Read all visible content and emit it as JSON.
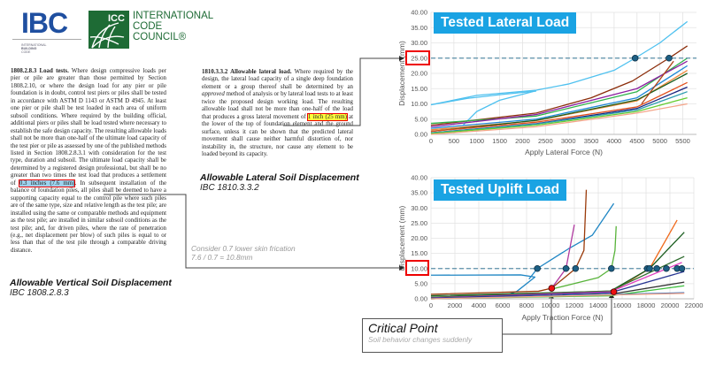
{
  "logos": {
    "ibc": {
      "mark": "IBC",
      "sub": [
        "INTERNATIONAL",
        "BUILDING",
        "CODE"
      ],
      "color": "#1f4fa0"
    },
    "icc": {
      "mark": "ICC",
      "name": [
        "INTERNATIONAL",
        "CODE",
        "COUNCIL®"
      ],
      "color": "#1e6b35"
    }
  },
  "vertical": {
    "section": "1808.2.8.3 Load tests.",
    "text_before": " Where design compressive loads per pier or pile are greater than those permitted by Section 1808.2.10, or where the design load for any pier or pile foundation is in doubt, control test piers or piles shall be tested in accordance with ASTM D 1143 or ASTM D 4945. At least one pier or pile shall be test loaded in each area of uniform subsoil conditions. Where required by the building official, additional piers or piles shall be load tested where necessary to establish the safe design capacity. The resulting allowable loads shall not be more than one-half of the ultimate load capacity of the test pier or pile as assessed by one of the published methods listed in Section 1808.2.8.3.1 with consideration for the test type, duration and subsoil. The ultimate load capacity shall be determined by a registered design professional, but shall be no greater than two times the test load that produces a settlement of ",
    "highlight": "0.3 inches (7.6 mm)",
    "text_after": ". In subsequent installation of the balance of foundation piles, all piles shall be deemed to have a supporting capacity equal to the control pile where such piles are of the same type, size and relative length as the test pile; are installed using the same or comparable methods and equipment as the test pile; are installed in similar subsoil conditions as the test pile; and, for driven piles, where the rate of penetration (e.g., net displacement per blow) of such piles is equal to or less than that of the test pile through a comparable driving distance.",
    "caption_title": "Allowable Vertical Soil Displacement",
    "caption_ref": "IBC 1808.2.8.3"
  },
  "lateral": {
    "section": "1810.3.3.2 Allowable lateral load.",
    "text_a": " Where required by the design, the lateral load capacity of a single deep foundation element or a group thereof shall be determined by an ",
    "text_em": "approved",
    "text_b": " method of analysis or by lateral load tests to at least twice the proposed design working load. The resulting allowable load shall not be more than one-half of the load that produces a gross lateral movement of ",
    "highlight": "1 inch (25 mm)",
    "text_after": " at the lower of the top of foundation element and the ground surface, unless it can be shown that the predicted lateral movement shall cause neither harmful distortion of, nor instability in, the structure, nor cause any element to be loaded beyond its capacity.",
    "caption_title": "Allowable Lateral Soil Displacement",
    "caption_ref": "IBC 1810.3.3.2"
  },
  "skin_note": {
    "line1": "Consider 0.7 lower skin frication",
    "line2": "7.6 / 0.7 = 10.8mm"
  },
  "critical": {
    "title": "Critical Point",
    "subtitle": "Soil behavior changes suddenly"
  },
  "chart_data": [
    {
      "type": "line",
      "title": "Tested Lateral Load",
      "xlabel": "Apply Lateral Force (N)",
      "ylabel": "Displacement (mm)",
      "xlim": [
        0,
        5800
      ],
      "ylim": [
        0,
        40
      ],
      "xticks": [
        0,
        500,
        1000,
        1500,
        2000,
        2500,
        3000,
        3500,
        4000,
        4500,
        5000,
        5500
      ],
      "yticks": [
        "0.00",
        "5.00",
        "10.00",
        "15.00",
        "20.00",
        "25.00",
        "30.00",
        "35.00",
        "40.00"
      ],
      "grid": true,
      "threshold": 25,
      "highlight_tick": "25.00",
      "markers": [
        [
          4460,
          25
        ],
        [
          5200,
          25
        ]
      ],
      "series": [
        {
          "color": "#4fc1ef",
          "points": [
            [
              0,
              9.7
            ],
            [
              1000,
              12.8
            ],
            [
              2300,
              14.5
            ],
            [
              3000,
              16.5
            ],
            [
              4000,
              21
            ],
            [
              4460,
              25
            ],
            [
              5000,
              30
            ],
            [
              5600,
              37
            ]
          ]
        },
        {
          "color": "#4fc1ef",
          "points": [
            [
              0,
              9.7
            ],
            [
              800,
              11.8
            ],
            [
              1500,
              13
            ],
            [
              2300,
              14.2
            ]
          ]
        },
        {
          "color": "#4fc1ef",
          "points": [
            [
              700,
              3
            ],
            [
              1000,
              7.5
            ],
            [
              1500,
              11.2
            ],
            [
              2300,
              14.3
            ]
          ]
        },
        {
          "color": "#8b2d0a",
          "points": [
            [
              0,
              3
            ],
            [
              2300,
              7
            ],
            [
              3500,
              12
            ],
            [
              4400,
              17.5
            ],
            [
              5200,
              25
            ],
            [
              5600,
              29
            ]
          ]
        },
        {
          "color": "#2db34a",
          "points": [
            [
              0,
              3.6
            ],
            [
              2300,
              6
            ],
            [
              4500,
              14
            ],
            [
              5600,
              25
            ]
          ]
        },
        {
          "color": "#8b1fa0",
          "points": [
            [
              0,
              2.5
            ],
            [
              2300,
              6.5
            ],
            [
              4500,
              15
            ],
            [
              5600,
              24
            ]
          ]
        },
        {
          "color": "#1e88d6",
          "points": [
            [
              0,
              2
            ],
            [
              2300,
              5
            ],
            [
              4500,
              12
            ],
            [
              5600,
              22.5
            ]
          ]
        },
        {
          "color": "#f08a3c",
          "points": [
            [
              0,
              1.5
            ],
            [
              2300,
              4.5
            ],
            [
              4500,
              11
            ],
            [
              5600,
              21
            ]
          ]
        },
        {
          "color": "#1b5e20",
          "points": [
            [
              0,
              1
            ],
            [
              2300,
              4.6
            ],
            [
              4500,
              11.3
            ],
            [
              5600,
              20
            ]
          ]
        },
        {
          "color": "#e2501d",
          "points": [
            [
              0,
              1
            ],
            [
              2300,
              4
            ],
            [
              4500,
              9
            ],
            [
              5600,
              17
            ]
          ]
        },
        {
          "color": "#1a237e",
          "points": [
            [
              0,
              0.5
            ],
            [
              2300,
              3.5
            ],
            [
              4500,
              8.5
            ],
            [
              5600,
              15.5
            ]
          ]
        },
        {
          "color": "#2a9bb0",
          "points": [
            [
              0,
              0.5
            ],
            [
              2300,
              3.4
            ],
            [
              4500,
              8
            ],
            [
              5600,
              14
            ]
          ]
        },
        {
          "color": "#66cc33",
          "points": [
            [
              0,
              0.3
            ],
            [
              2300,
              3
            ],
            [
              4500,
              7.5
            ],
            [
              5600,
              12
            ]
          ]
        },
        {
          "color": "#f4a58a",
          "points": [
            [
              0,
              0
            ],
            [
              2300,
              2.5
            ],
            [
              4500,
              7
            ],
            [
              5600,
              10
            ]
          ]
        },
        {
          "color": "#b0461a",
          "points": [
            [
              4600,
              10
            ],
            [
              5300,
              24
            ]
          ]
        }
      ]
    },
    {
      "type": "line",
      "title": "Tested Uplift Load",
      "xlabel": "Apply Traction Force (N)",
      "ylabel": "Displacement (mm)",
      "xlim": [
        0,
        22000
      ],
      "ylim": [
        0,
        40
      ],
      "xticks": [
        0,
        2000,
        4000,
        6000,
        8000,
        10000,
        12000,
        14000,
        16000,
        18000,
        20000,
        22000
      ],
      "yticks": [
        "0.00",
        "5.00",
        "10.00",
        "15.00",
        "20.00",
        "25.00",
        "30.00",
        "35.00",
        "40.00"
      ],
      "grid": true,
      "threshold": 10,
      "highlight_tick": "10.00",
      "markers": [
        [
          8900,
          10
        ],
        [
          11300,
          10
        ],
        [
          12100,
          10
        ],
        [
          15100,
          10
        ],
        [
          18100,
          10
        ],
        [
          18300,
          10
        ],
        [
          18900,
          10
        ],
        [
          19700,
          10
        ],
        [
          20600,
          10
        ],
        [
          21000,
          10
        ]
      ],
      "critical_points": [
        [
          10100,
          3.5
        ],
        [
          15300,
          2.3
        ]
      ],
      "series": [
        {
          "color": "#1f86c4",
          "points": [
            [
              0,
              7.8
            ],
            [
              7500,
              7.9
            ],
            [
              8700,
              7.2
            ],
            [
              7200,
              2.5
            ],
            [
              5800,
              0.5
            ]
          ]
        },
        {
          "color": "#1f86c4",
          "points": [
            [
              8200,
              6.5
            ],
            [
              8900,
              10
            ],
            [
              11500,
              16.5
            ],
            [
              13500,
              21
            ],
            [
              15300,
              31.5
            ]
          ]
        },
        {
          "color": "#b03aa0",
          "points": [
            [
              10100,
              3.5
            ],
            [
              11300,
              10
            ],
            [
              12000,
              24.5
            ]
          ]
        },
        {
          "color": "#9a3a0a",
          "points": [
            [
              0,
              1.5
            ],
            [
              9000,
              2.5
            ],
            [
              10100,
              3.5
            ],
            [
              12100,
              10
            ],
            [
              12800,
              16
            ],
            [
              13000,
              36
            ]
          ]
        },
        {
          "color": "#58b33a",
          "points": [
            [
              10100,
              3.2
            ],
            [
              14000,
              7
            ],
            [
              15100,
              10
            ],
            [
              15400,
              16
            ],
            [
              15500,
              24
            ]
          ]
        },
        {
          "color": "#f06a1c",
          "points": [
            [
              0,
              0.5
            ],
            [
              15000,
              2
            ],
            [
              18300,
              10
            ],
            [
              20600,
              26
            ]
          ]
        },
        {
          "color": "#1b5e20",
          "points": [
            [
              0,
              1
            ],
            [
              15000,
              2.5
            ],
            [
              18300,
              10
            ],
            [
              21200,
              22
            ]
          ]
        },
        {
          "color": "#2e6b2e",
          "points": [
            [
              0,
              0.5
            ],
            [
              15000,
              2.6
            ],
            [
              21200,
              14
            ]
          ]
        },
        {
          "color": "#e040c0",
          "points": [
            [
              0,
              0.3
            ],
            [
              15000,
              2.3
            ],
            [
              21000,
              12
            ]
          ]
        },
        {
          "color": "#283593",
          "points": [
            [
              0,
              0.2
            ],
            [
              15000,
              2
            ],
            [
              21200,
              9
            ]
          ]
        },
        {
          "color": "#333333",
          "points": [
            [
              0,
              0
            ],
            [
              15000,
              1.5
            ],
            [
              21200,
              5.5
            ]
          ]
        },
        {
          "color": "#40c040",
          "points": [
            [
              0,
              0
            ],
            [
              15000,
              1
            ],
            [
              21200,
              4.3
            ]
          ]
        },
        {
          "color": "#1565c0",
          "points": [
            [
              0,
              0
            ],
            [
              21200,
              2
            ]
          ]
        },
        {
          "color": "#f4a58a",
          "points": [
            [
              0,
              0
            ],
            [
              21200,
              1.8
            ]
          ]
        }
      ]
    }
  ]
}
